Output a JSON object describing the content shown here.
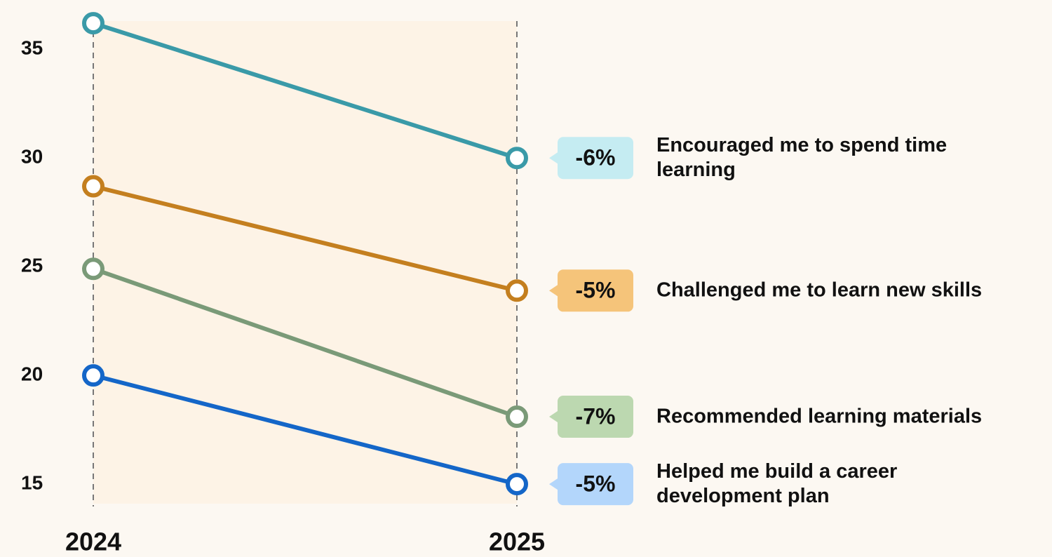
{
  "chart_data": {
    "type": "slope",
    "x": [
      "2024",
      "2025"
    ],
    "ylim": [
      14.1,
      36.3
    ],
    "yticks": [
      15,
      20,
      25,
      30,
      35
    ],
    "series": [
      {
        "name": "Encouraged me to spend time learning",
        "color": "#3a9aa8",
        "label_color": "#c5ecf2",
        "values": [
          36.2,
          30
        ],
        "change_label": "-6%"
      },
      {
        "name": "Challenged me to learn new skills",
        "color": "#c47f1f",
        "label_color": "#f5c47a",
        "values": [
          28.7,
          23.9
        ],
        "change_label": "-5%"
      },
      {
        "name": "Recommended learning materials",
        "color": "#7a9a78",
        "label_color": "#bcd8b0",
        "values": [
          24.9,
          18.1
        ],
        "change_label": "-7%"
      },
      {
        "name": "Helped me build a career development plan",
        "color": "#1466c8",
        "label_color": "#b3d6fb",
        "values": [
          20,
          15
        ],
        "change_label": "-5%"
      }
    ]
  }
}
